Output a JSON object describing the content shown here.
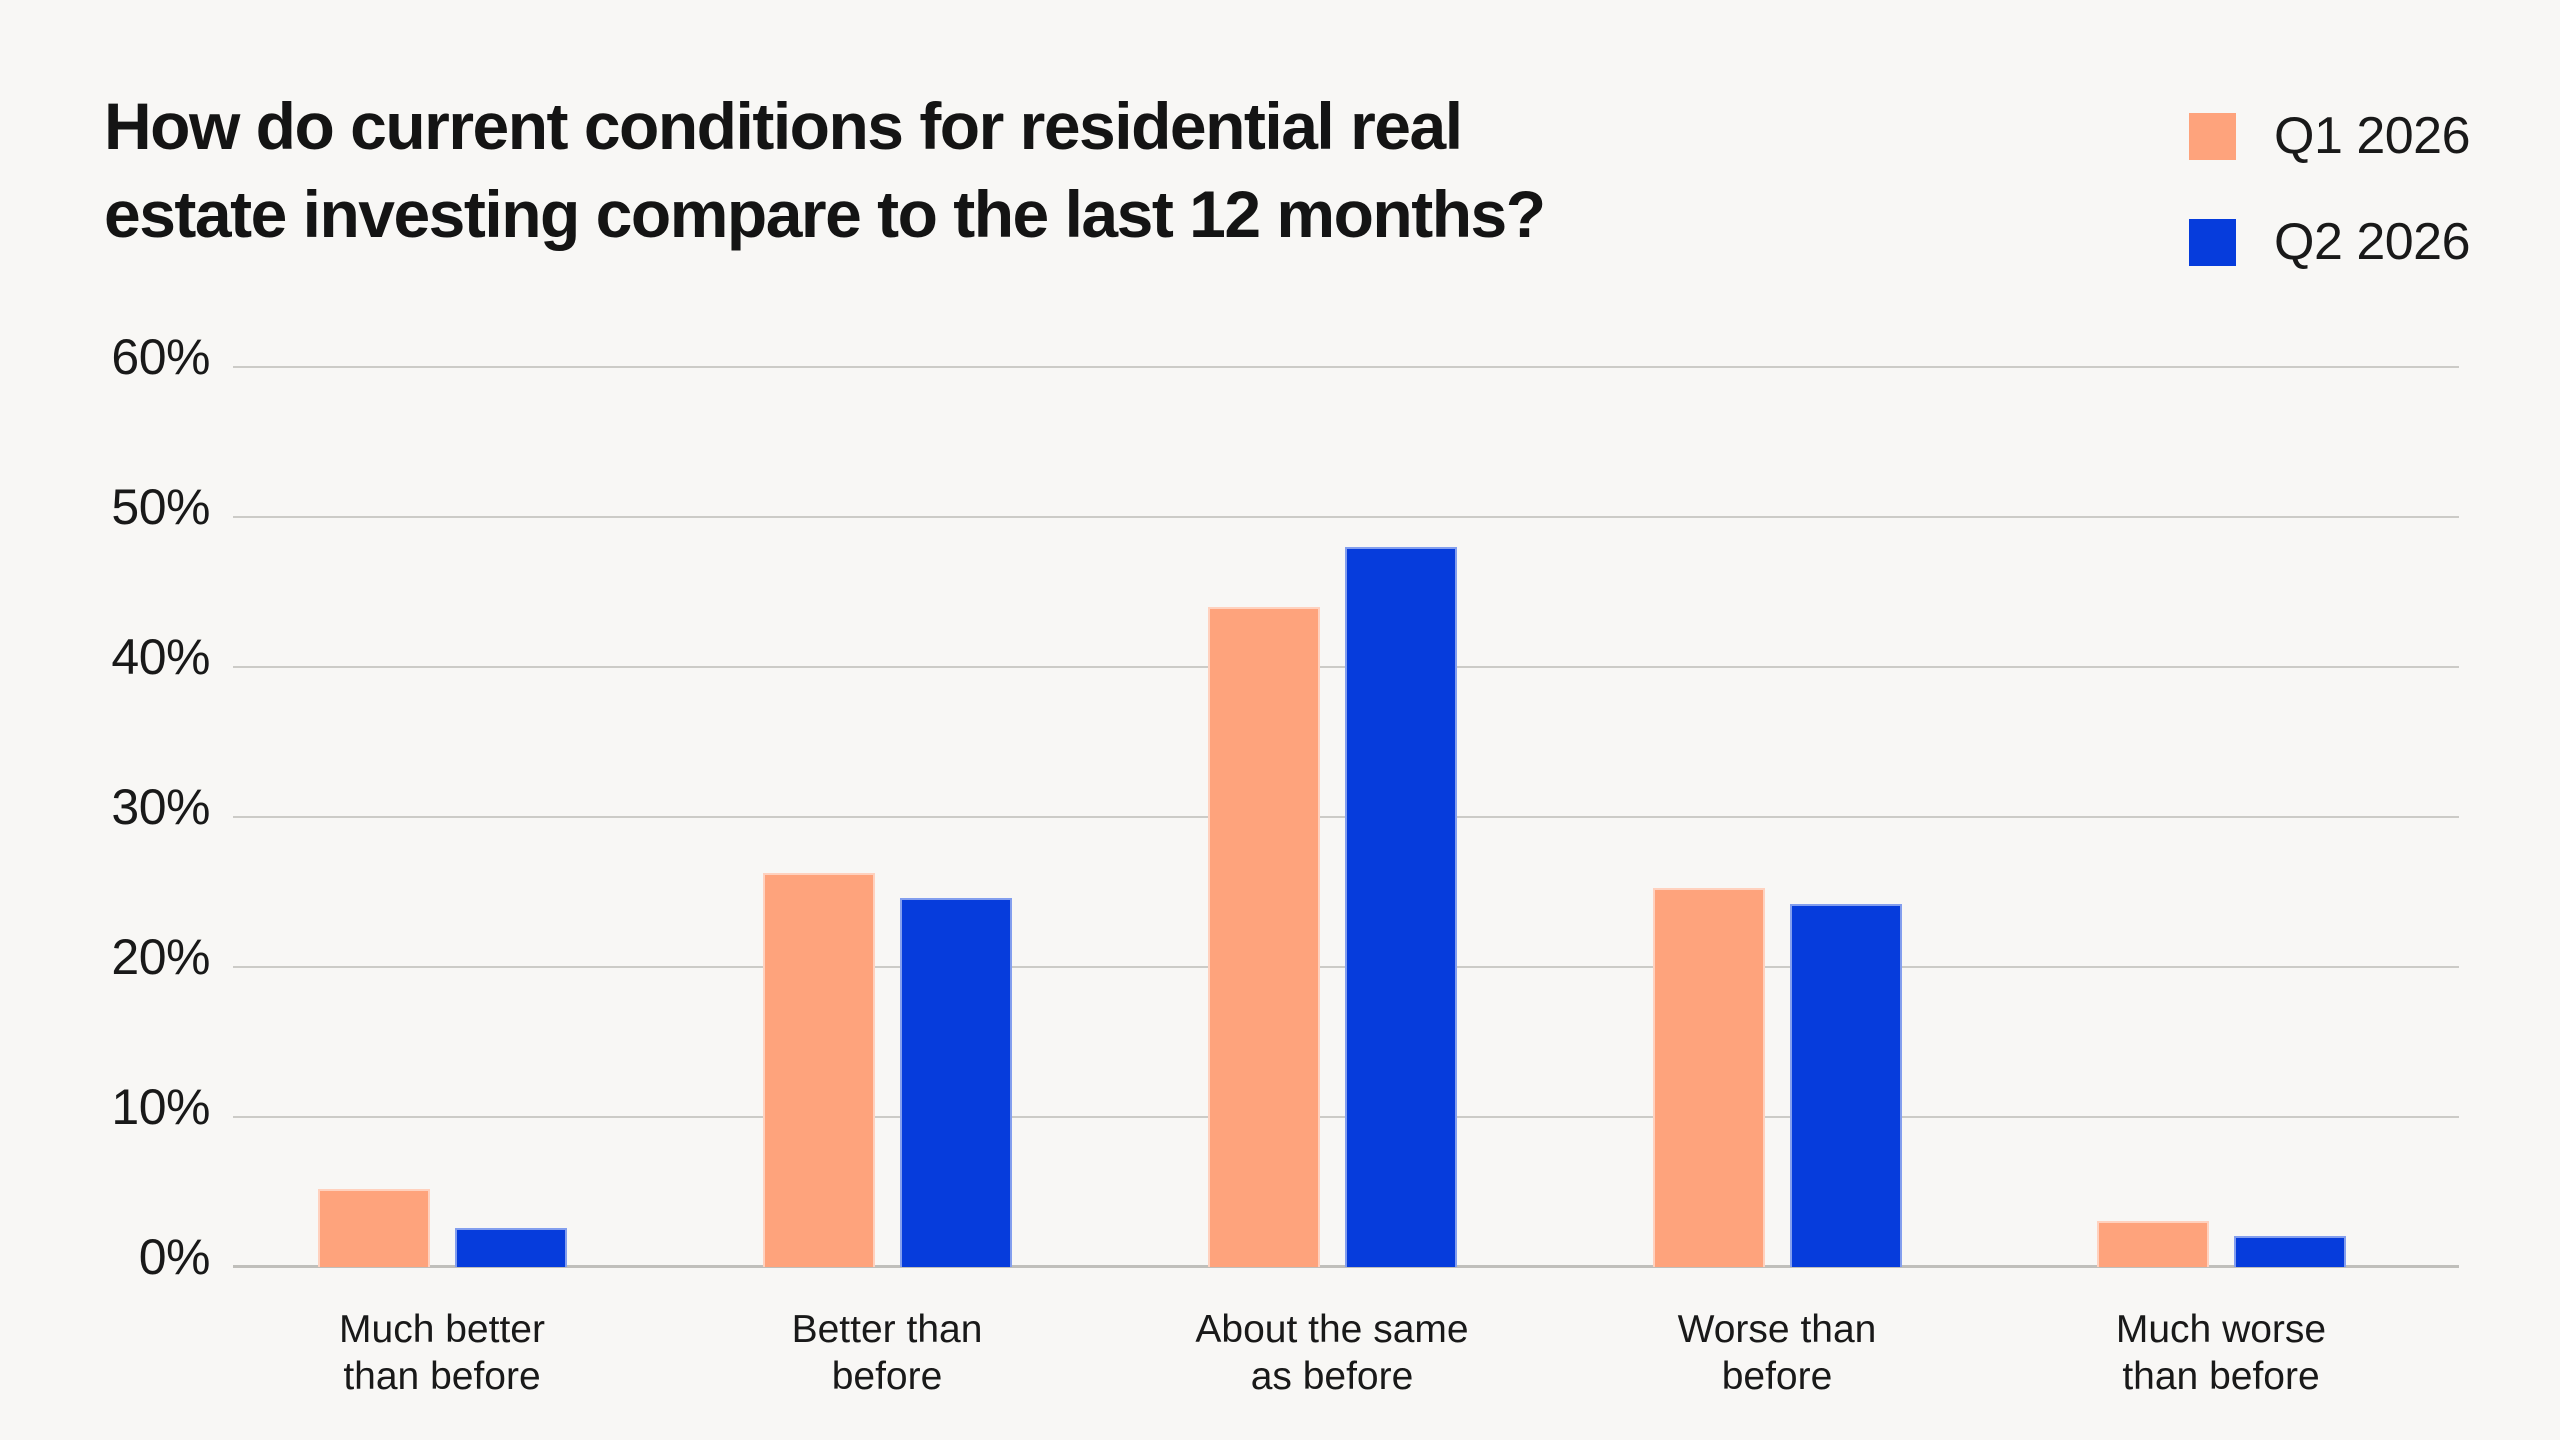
{
  "title": {
    "full": "How do current conditions for residential real estate investing compare to the last 12 months?",
    "lines": [
      "How do current conditions for residential real",
      "estate investing compare to the last 12 months?"
    ]
  },
  "legend": [
    {
      "label": "Q1 2026",
      "color": "#FEA37C"
    },
    {
      "label": "Q2 2026",
      "color": "#063CDC"
    }
  ],
  "chart_data": {
    "type": "bar",
    "title": "How do current conditions for residential real estate investing compare to the last 12 months?",
    "categories": [
      [
        "Much better",
        "than before"
      ],
      [
        "Better than",
        "before"
      ],
      [
        "About the same",
        "as before"
      ],
      [
        "Worse than",
        "before"
      ],
      [
        "Much worse",
        "than before"
      ]
    ],
    "series": [
      {
        "name": "Q1 2026",
        "color": "#FEA37C",
        "values": [
          5.2,
          26.3,
          44.0,
          25.3,
          3.1
        ]
      },
      {
        "name": "Q2 2026",
        "color": "#063CDC",
        "values": [
          2.6,
          24.6,
          48.0,
          24.2,
          2.1
        ]
      }
    ],
    "xlabel": "",
    "ylabel": "",
    "ylim": [
      0,
      60
    ],
    "y_ticks": [
      0,
      10,
      20,
      30,
      40,
      50,
      60
    ],
    "tick_suffix": "%",
    "grid": true,
    "legend_position": "top-right"
  },
  "colors": {
    "background": "#F8F7F5",
    "grid": "#CCCBC7",
    "axis": "#C0BFBB",
    "text": "#191919"
  }
}
